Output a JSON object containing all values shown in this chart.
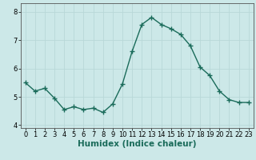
{
  "x": [
    0,
    1,
    2,
    3,
    4,
    5,
    6,
    7,
    8,
    9,
    10,
    11,
    12,
    13,
    14,
    15,
    16,
    17,
    18,
    19,
    20,
    21,
    22,
    23
  ],
  "y": [
    5.5,
    5.2,
    5.3,
    4.95,
    4.55,
    4.65,
    4.55,
    4.6,
    4.45,
    4.75,
    5.45,
    6.6,
    7.55,
    7.8,
    7.55,
    7.4,
    7.2,
    6.8,
    6.05,
    5.75,
    5.2,
    4.9,
    4.8,
    4.8
  ],
  "xlabel": "Humidex (Indice chaleur)",
  "xlim": [
    -0.5,
    23.5
  ],
  "ylim": [
    3.9,
    8.3
  ],
  "yticks": [
    4,
    5,
    6,
    7,
    8
  ],
  "xticks": [
    0,
    1,
    2,
    3,
    4,
    5,
    6,
    7,
    8,
    9,
    10,
    11,
    12,
    13,
    14,
    15,
    16,
    17,
    18,
    19,
    20,
    21,
    22,
    23
  ],
  "line_color": "#1a6b5a",
  "marker": "+",
  "bg_color": "#cce8e8",
  "grid_color": "#b8d8d8",
  "axis_bg": "#cce8e8",
  "tick_label_fontsize": 6.0,
  "xlabel_fontsize": 7.5,
  "line_width": 1.0,
  "marker_size": 4,
  "marker_edge_width": 1.0
}
